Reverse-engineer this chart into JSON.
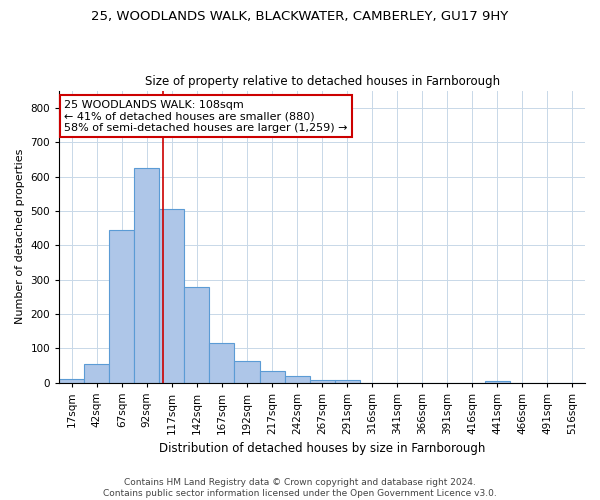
{
  "title_line1": "25, WOODLANDS WALK, BLACKWATER, CAMBERLEY, GU17 9HY",
  "title_line2": "Size of property relative to detached houses in Farnborough",
  "xlabel": "Distribution of detached houses by size in Farnborough",
  "ylabel": "Number of detached properties",
  "footer_line1": "Contains HM Land Registry data © Crown copyright and database right 2024.",
  "footer_line2": "Contains public sector information licensed under the Open Government Licence v3.0.",
  "annotation_line1": "25 WOODLANDS WALK: 108sqm",
  "annotation_line2": "← 41% of detached houses are smaller (880)",
  "annotation_line3": "58% of semi-detached houses are larger (1,259) →",
  "bar_labels": [
    "17sqm",
    "42sqm",
    "67sqm",
    "92sqm",
    "117sqm",
    "142sqm",
    "167sqm",
    "192sqm",
    "217sqm",
    "242sqm",
    "267sqm",
    "291sqm",
    "316sqm",
    "341sqm",
    "366sqm",
    "391sqm",
    "416sqm",
    "441sqm",
    "466sqm",
    "491sqm",
    "516sqm"
  ],
  "bar_values": [
    10,
    55,
    445,
    625,
    505,
    280,
    115,
    63,
    33,
    18,
    8,
    8,
    0,
    0,
    0,
    0,
    0,
    5,
    0,
    0,
    0
  ],
  "bar_color": "#aec6e8",
  "bar_edge_color": "#5b9bd5",
  "vline_color": "#cc0000",
  "vline_x": 3.64,
  "ylim": [
    0,
    850
  ],
  "yticks": [
    0,
    100,
    200,
    300,
    400,
    500,
    600,
    700,
    800
  ],
  "annotation_box_color": "#cc0000",
  "background_color": "#ffffff",
  "grid_color": "#c8d8e8",
  "title_fontsize": 9.5,
  "subtitle_fontsize": 8.5,
  "ylabel_fontsize": 8,
  "xlabel_fontsize": 8.5,
  "tick_fontsize": 7.5,
  "footer_fontsize": 6.5,
  "annotation_fontsize": 8
}
